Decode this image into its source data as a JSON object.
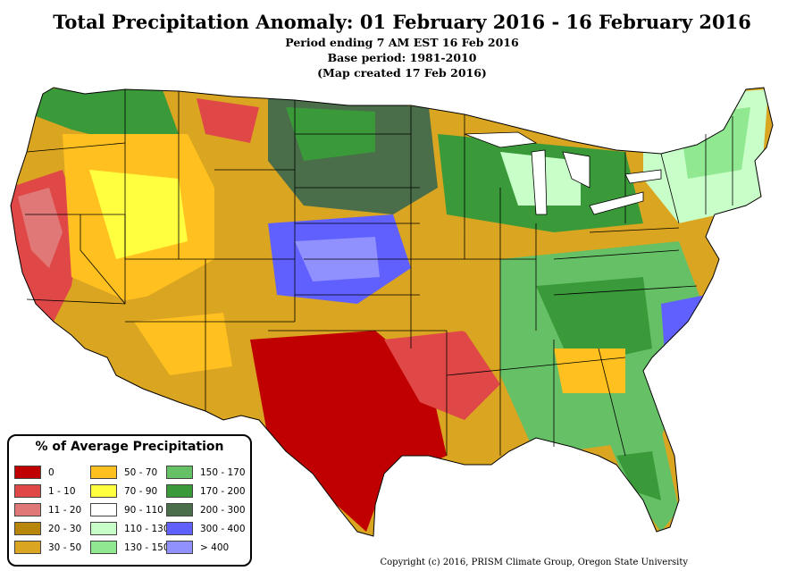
{
  "header": {
    "title": "Total Precipitation Anomaly: 01 February 2016 - 16 February 2016",
    "period": "Period ending 7 AM EST 16 Feb 2016",
    "base": "Base period: 1981-2010",
    "created": "(Map created 17 Feb 2016)"
  },
  "legend": {
    "title": "% of Average Precipitation",
    "items": [
      {
        "label": "0",
        "color": "#c00000"
      },
      {
        "label": "1 - 10",
        "color": "#e04848"
      },
      {
        "label": "11 - 20",
        "color": "#e07878"
      },
      {
        "label": "20 - 30",
        "color": "#b8860b"
      },
      {
        "label": "30 - 50",
        "color": "#daa520"
      },
      {
        "label": "50 - 70",
        "color": "#ffc020"
      },
      {
        "label": "70 - 90",
        "color": "#ffff40"
      },
      {
        "label": "90 - 110",
        "color": "#ffffff"
      },
      {
        "label": "110 - 130",
        "color": "#c8ffc8"
      },
      {
        "label": "130 - 150",
        "color": "#90e890"
      },
      {
        "label": "150 - 170",
        "color": "#66c066"
      },
      {
        "label": "170 - 200",
        "color": "#3a9a3a"
      },
      {
        "label": "200 - 300",
        "color": "#4a6e4a"
      },
      {
        "label": "300 - 400",
        "color": "#6060ff"
      },
      {
        "label": "> 400",
        "color": "#9090ff"
      }
    ]
  },
  "footer": {
    "copyright": "Copyright (c) 2016, PRISM Climate Group, Oregon State University"
  }
}
